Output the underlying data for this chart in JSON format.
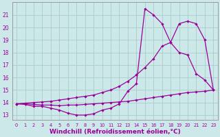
{
  "background_color": "#cce8e8",
  "line_color": "#990099",
  "grid_color": "#aacccc",
  "xlabel": "Windchill (Refroidissement éolien,°C)",
  "xlabel_fontsize": 6.5,
  "ylabel_ticks": [
    13,
    14,
    15,
    16,
    17,
    18,
    19,
    20,
    21
  ],
  "xlim": [
    -0.5,
    23.5
  ],
  "ylim": [
    12.6,
    22.0
  ],
  "line1_x": [
    0,
    1,
    2,
    3,
    4,
    5,
    6,
    7,
    8,
    9,
    10,
    11,
    12,
    13,
    14,
    15,
    16,
    17,
    18,
    19,
    20,
    21,
    22,
    23
  ],
  "line1_y": [
    13.9,
    13.85,
    13.7,
    13.7,
    13.55,
    13.4,
    13.15,
    13.0,
    13.0,
    13.1,
    13.4,
    13.55,
    13.9,
    14.9,
    15.5,
    21.5,
    21.0,
    20.3,
    18.8,
    18.0,
    17.8,
    16.3,
    15.8,
    15.0
  ],
  "line2_x": [
    0,
    1,
    2,
    3,
    4,
    5,
    6,
    7,
    8,
    9,
    10,
    11,
    12,
    13,
    14,
    15,
    16,
    17,
    18,
    19,
    20,
    21,
    22,
    23
  ],
  "line2_y": [
    13.9,
    13.95,
    14.0,
    14.05,
    14.1,
    14.2,
    14.3,
    14.4,
    14.5,
    14.6,
    14.8,
    15.0,
    15.3,
    15.7,
    16.2,
    16.8,
    17.5,
    18.5,
    18.8,
    20.3,
    20.5,
    20.3,
    19.0,
    15.0
  ],
  "line3_x": [
    0,
    1,
    2,
    3,
    4,
    5,
    6,
    7,
    8,
    9,
    10,
    11,
    12,
    13,
    14,
    15,
    16,
    17,
    18,
    19,
    20,
    21,
    22,
    23
  ],
  "line3_y": [
    13.9,
    13.9,
    13.85,
    13.8,
    13.8,
    13.75,
    13.8,
    13.8,
    13.85,
    13.9,
    13.95,
    14.0,
    14.05,
    14.1,
    14.2,
    14.3,
    14.4,
    14.5,
    14.6,
    14.7,
    14.8,
    14.85,
    14.9,
    15.0
  ]
}
